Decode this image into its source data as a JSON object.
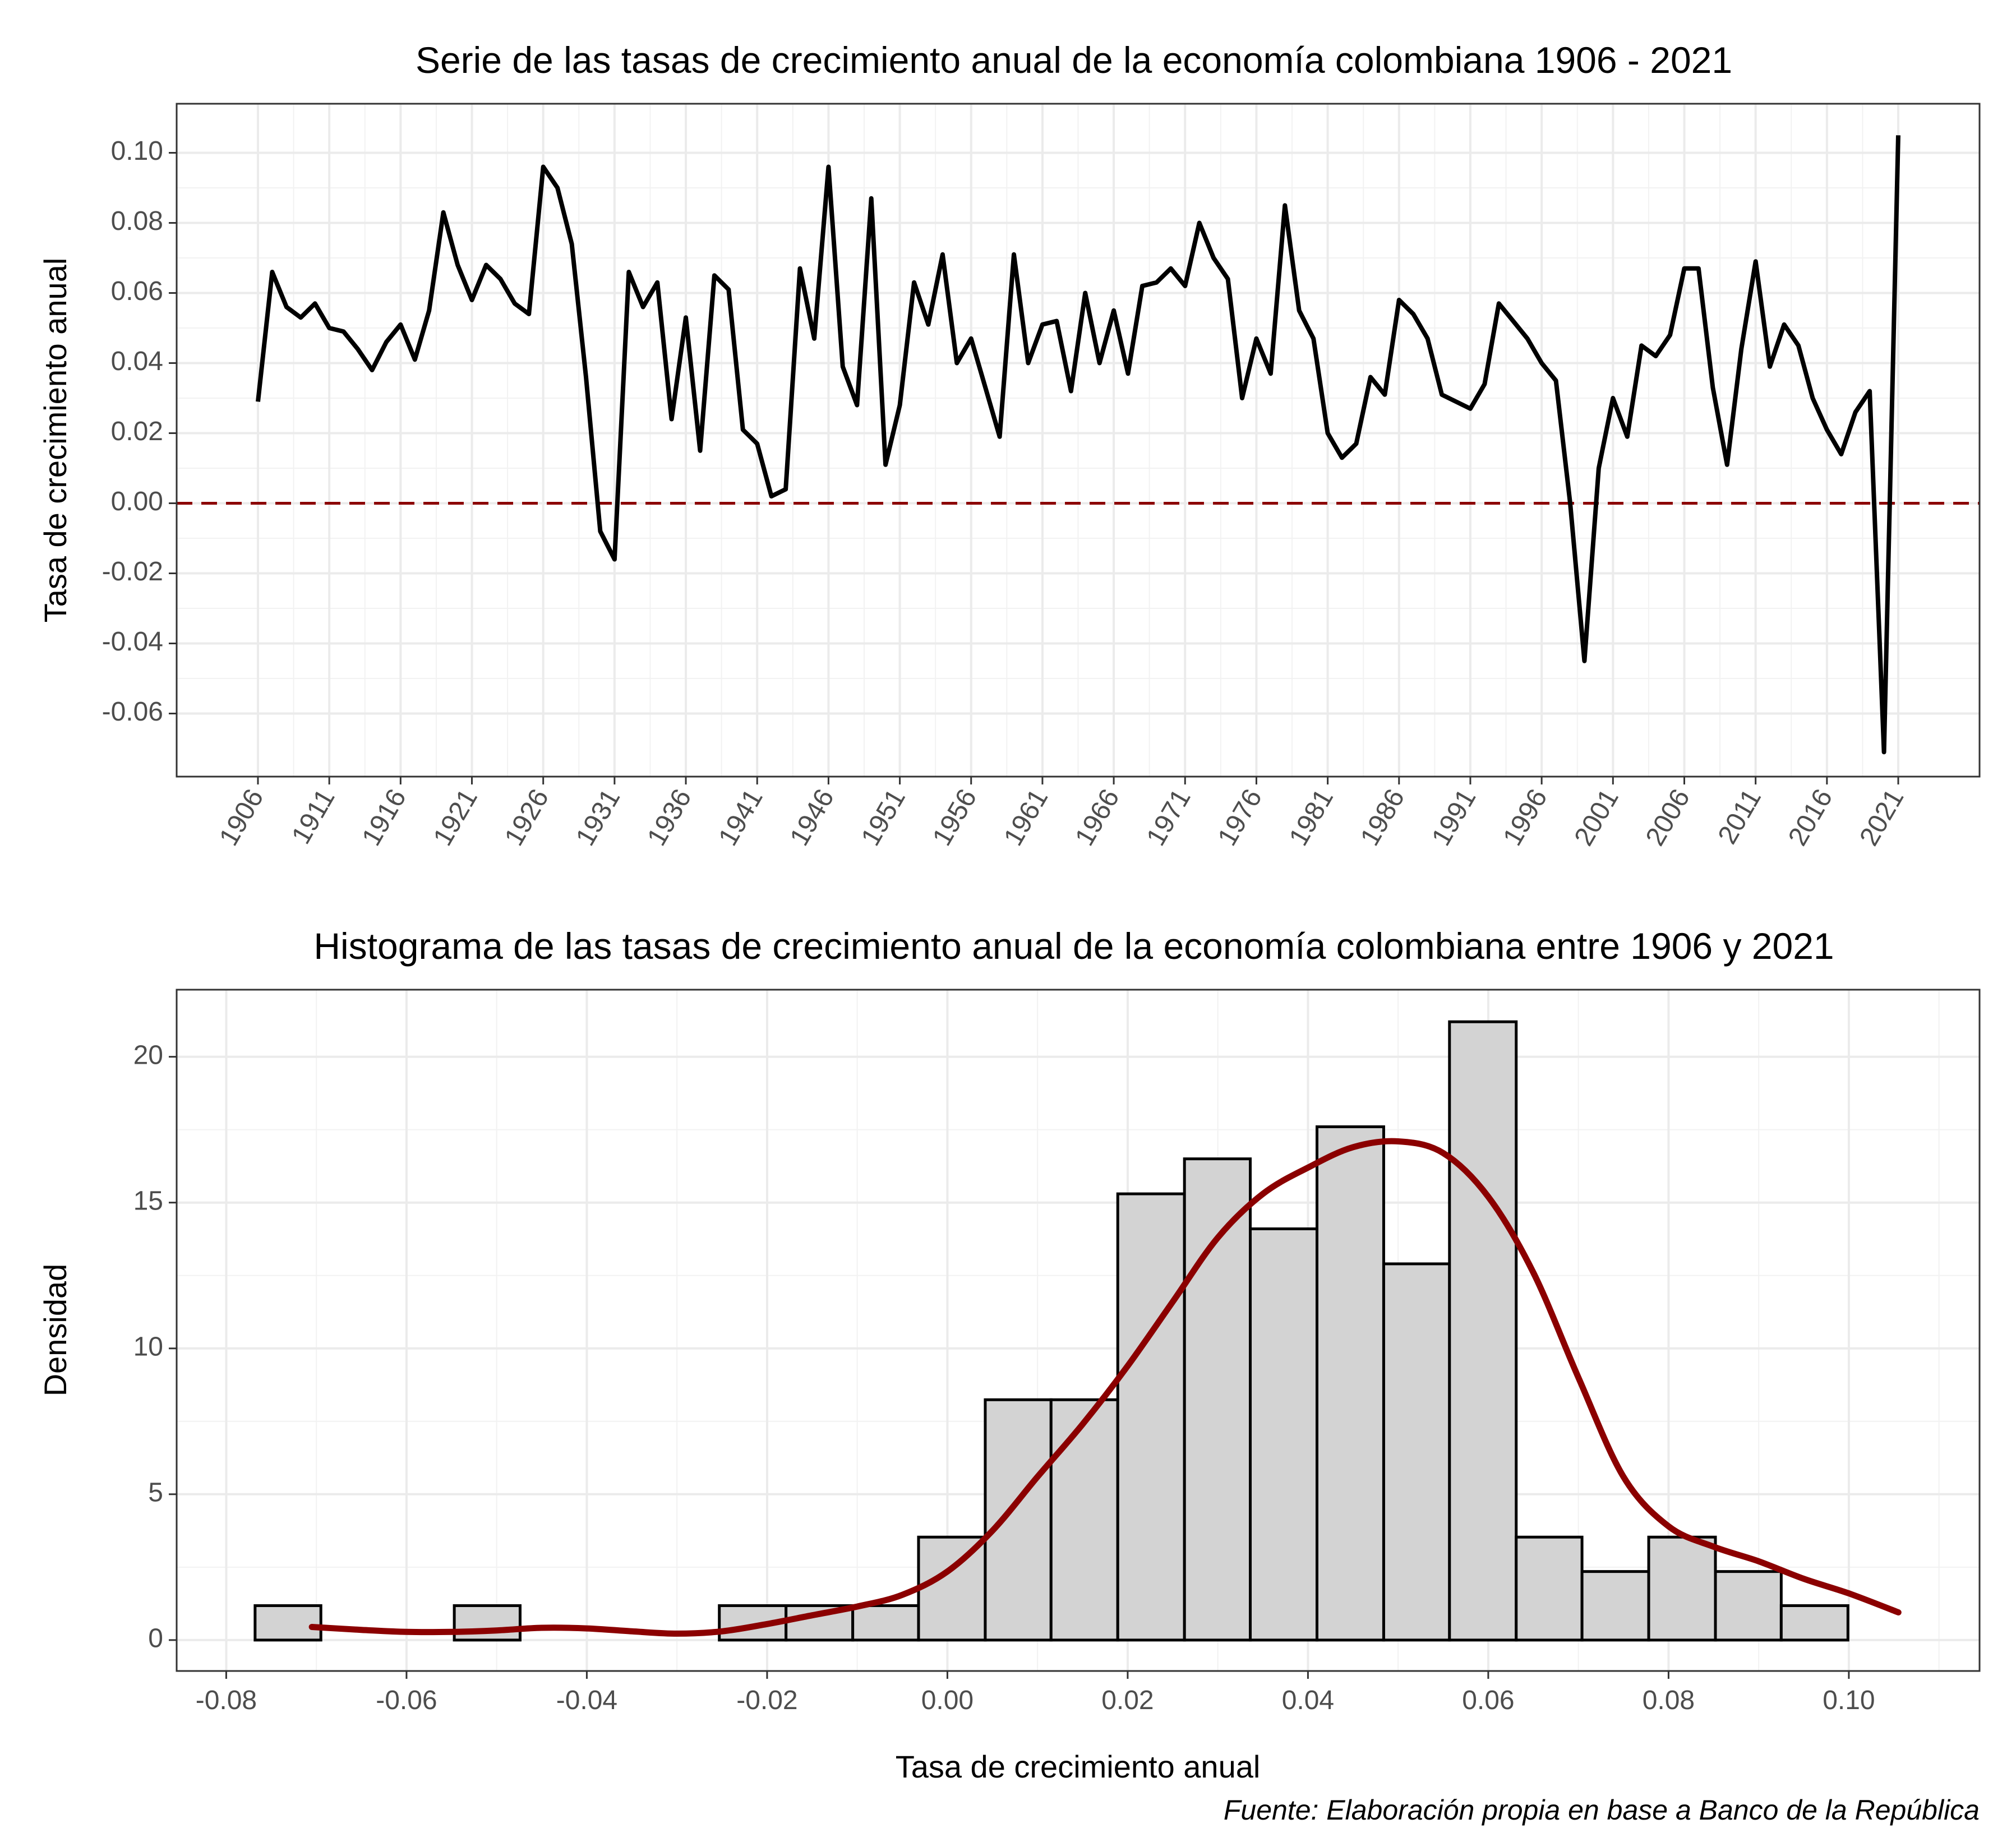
{
  "chart_data": [
    {
      "type": "line",
      "title": "Serie de las tasas de crecimiento anual de la economía colombiana 1906 - 2021",
      "xlabel": "",
      "ylabel": "Tasa de crecimiento anual",
      "xlim": [
        1900.3,
        2026.7
      ],
      "ylim": [
        -0.078,
        0.114
      ],
      "grid": true,
      "x_ticks": [
        1906,
        1911,
        1916,
        1921,
        1926,
        1931,
        1936,
        1941,
        1946,
        1951,
        1956,
        1961,
        1966,
        1971,
        1976,
        1981,
        1986,
        1991,
        1996,
        2001,
        2006,
        2011,
        2016,
        2021
      ],
      "y_ticks": [
        -0.06,
        -0.04,
        -0.02,
        0.0,
        0.02,
        0.04,
        0.06,
        0.08,
        0.1
      ],
      "y_tick_labels": [
        "-0.06",
        "-0.04",
        "-0.02",
        "0.00",
        "0.02",
        "0.04",
        "0.06",
        "0.08",
        "0.10"
      ],
      "reference_line": {
        "y": 0.0,
        "style": "dashed",
        "color": "#8b0000"
      },
      "series": [
        {
          "color": "#000000",
          "x": [
            1906,
            1907,
            1908,
            1909,
            1910,
            1911,
            1912,
            1913,
            1914,
            1915,
            1916,
            1917,
            1918,
            1919,
            1920,
            1921,
            1922,
            1923,
            1924,
            1925,
            1926,
            1927,
            1928,
            1929,
            1930,
            1931,
            1932,
            1933,
            1934,
            1935,
            1936,
            1937,
            1938,
            1939,
            1940,
            1941,
            1942,
            1943,
            1944,
            1945,
            1946,
            1947,
            1948,
            1949,
            1950,
            1951,
            1952,
            1953,
            1954,
            1955,
            1956,
            1957,
            1958,
            1959,
            1960,
            1961,
            1962,
            1963,
            1964,
            1965,
            1966,
            1967,
            1968,
            1969,
            1970,
            1971,
            1972,
            1973,
            1974,
            1975,
            1976,
            1977,
            1978,
            1979,
            1980,
            1981,
            1982,
            1983,
            1984,
            1985,
            1986,
            1987,
            1988,
            1989,
            1990,
            1991,
            1992,
            1993,
            1994,
            1995,
            1996,
            1997,
            1998,
            1999,
            2000,
            2001,
            2002,
            2003,
            2004,
            2005,
            2006,
            2007,
            2008,
            2009,
            2010,
            2011,
            2012,
            2013,
            2014,
            2015,
            2016,
            2017,
            2018,
            2019,
            2020,
            2021
          ],
          "y": [
            0.029,
            0.066,
            0.056,
            0.053,
            0.057,
            0.05,
            0.049,
            0.044,
            0.038,
            0.046,
            0.051,
            0.041,
            0.055,
            0.083,
            0.068,
            0.058,
            0.068,
            0.064,
            0.057,
            0.054,
            0.096,
            0.09,
            0.074,
            0.036,
            -0.008,
            -0.016,
            0.066,
            0.056,
            0.063,
            0.024,
            0.053,
            0.015,
            0.065,
            0.061,
            0.021,
            0.017,
            0.002,
            0.004,
            0.067,
            0.047,
            0.096,
            0.039,
            0.028,
            0.087,
            0.011,
            0.028,
            0.063,
            0.051,
            0.071,
            0.04,
            0.047,
            0.033,
            0.019,
            0.071,
            0.04,
            0.051,
            0.052,
            0.032,
            0.06,
            0.04,
            0.055,
            0.037,
            0.062,
            0.063,
            0.067,
            0.062,
            0.08,
            0.07,
            0.064,
            0.03,
            0.047,
            0.037,
            0.085,
            0.055,
            0.047,
            0.02,
            0.013,
            0.017,
            0.036,
            0.031,
            0.058,
            0.054,
            0.047,
            0.031,
            0.029,
            0.027,
            0.034,
            0.057,
            0.052,
            0.047,
            0.04,
            0.035,
            0.0,
            -0.045,
            0.01,
            0.03,
            0.019,
            0.045,
            0.042,
            0.048,
            0.067,
            0.067,
            0.033,
            0.011,
            0.044,
            0.069,
            0.039,
            0.051,
            0.045,
            0.03,
            0.021,
            0.014,
            0.026,
            0.032,
            -0.071,
            0.105
          ]
        }
      ]
    },
    {
      "type": "histogram",
      "title": "Histograma de las tasas de crecimiento anual de la economía colombiana entre 1906 y 2021",
      "xlabel": "Tasa de crecimiento anual",
      "ylabel": "Densidad",
      "xlim": [
        -0.0855,
        0.1145
      ],
      "ylim": [
        -1.06,
        22.3
      ],
      "grid": true,
      "x_ticks": [
        -0.08,
        -0.06,
        -0.04,
        -0.02,
        0.0,
        0.02,
        0.04,
        0.06,
        0.08,
        0.1
      ],
      "x_tick_labels": [
        "-0.08",
        "-0.06",
        "-0.04",
        "-0.02",
        "0.00",
        "0.02",
        "0.04",
        "0.06",
        "0.08",
        "0.10"
      ],
      "y_ticks": [
        0,
        5,
        10,
        15,
        20
      ],
      "y_tick_labels": [
        "0",
        "5",
        "10",
        "15",
        "20"
      ],
      "bar_fill": "#d3d3d3",
      "bar_stroke": "#000000",
      "bin_edges": [
        -0.0768,
        -0.0695,
        -0.0621,
        -0.0547,
        -0.0474,
        -0.04,
        -0.0326,
        -0.0253,
        -0.0179,
        -0.0105,
        -0.0032,
        0.0042,
        0.0115,
        0.0189,
        0.0263,
        0.0336,
        0.041,
        0.0484,
        0.0557,
        0.0631,
        0.0704,
        0.0778,
        0.0852,
        0.0925,
        0.0999,
        0.1073
      ],
      "values": [
        1.18,
        0,
        0,
        1.18,
        0,
        0,
        0,
        1.18,
        1.18,
        1.18,
        3.53,
        8.24,
        8.24,
        15.3,
        16.5,
        14.1,
        17.6,
        12.9,
        21.2,
        3.53,
        2.35,
        3.53,
        2.35,
        1.18,
        0
      ],
      "density_curve": {
        "color": "#8b0000",
        "x": [
          -0.0705,
          -0.065,
          -0.06,
          -0.055,
          -0.05,
          -0.045,
          -0.04,
          -0.035,
          -0.03,
          -0.025,
          -0.02,
          -0.015,
          -0.01,
          -0.005,
          0.0,
          0.005,
          0.01,
          0.015,
          0.02,
          0.025,
          0.03,
          0.035,
          0.04,
          0.045,
          0.05,
          0.055,
          0.06,
          0.065,
          0.07,
          0.075,
          0.08,
          0.085,
          0.09,
          0.095,
          0.1,
          0.1055
        ],
        "y": [
          0.45,
          0.35,
          0.28,
          0.28,
          0.33,
          0.42,
          0.4,
          0.3,
          0.22,
          0.3,
          0.55,
          0.85,
          1.15,
          1.55,
          2.35,
          3.75,
          5.6,
          7.4,
          9.4,
          11.6,
          13.8,
          15.3,
          16.2,
          16.9,
          17.1,
          16.7,
          15.2,
          12.6,
          9.0,
          5.6,
          3.9,
          3.2,
          2.7,
          2.1,
          1.6,
          0.95
        ]
      }
    }
  ],
  "caption": "Fuente: Elaboración propia en base a Banco de la República"
}
